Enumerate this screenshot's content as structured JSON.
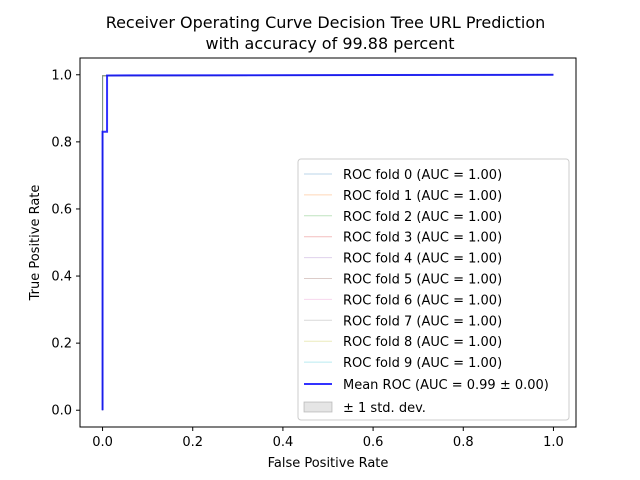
{
  "chart_data": {
    "type": "line",
    "title_lines": [
      "Receiver Operating Curve Decision Tree URL Prediction",
      "with accuracy of 99.88 percent"
    ],
    "xlabel": "False Positive Rate",
    "ylabel": "True Positive Rate",
    "xlim": [
      -0.05,
      1.05
    ],
    "ylim": [
      -0.05,
      1.05
    ],
    "xticks": [
      0.0,
      0.2,
      0.4,
      0.6,
      0.8,
      1.0
    ],
    "yticks": [
      0.0,
      0.2,
      0.4,
      0.6,
      0.8,
      1.0
    ],
    "xtick_labels": [
      "0.0",
      "0.2",
      "0.4",
      "0.6",
      "0.8",
      "1.0"
    ],
    "ytick_labels": [
      "0.0",
      "0.2",
      "0.4",
      "0.6",
      "0.8",
      "1.0"
    ],
    "grid": false,
    "legend_position": "lower-right",
    "series": [
      {
        "name": "ROC fold 0 (AUC = 1.00)",
        "color": "#1f77b4",
        "x": [
          0,
          0,
          1
        ],
        "y": [
          0,
          0.997,
          1
        ]
      },
      {
        "name": "ROC fold 1 (AUC = 1.00)",
        "color": "#ff7f0e",
        "x": [
          0,
          0,
          1
        ],
        "y": [
          0,
          0.997,
          1
        ]
      },
      {
        "name": "ROC fold 2 (AUC = 1.00)",
        "color": "#2ca02c",
        "x": [
          0,
          0,
          1
        ],
        "y": [
          0,
          0.997,
          1
        ]
      },
      {
        "name": "ROC fold 3 (AUC = 1.00)",
        "color": "#d62728",
        "x": [
          0,
          0,
          1
        ],
        "y": [
          0,
          0.997,
          1
        ]
      },
      {
        "name": "ROC fold 4 (AUC = 1.00)",
        "color": "#9467bd",
        "x": [
          0,
          0,
          1
        ],
        "y": [
          0,
          0.997,
          1
        ]
      },
      {
        "name": "ROC fold 5 (AUC = 1.00)",
        "color": "#8c564b",
        "x": [
          0,
          0,
          1
        ],
        "y": [
          0,
          0.997,
          1
        ]
      },
      {
        "name": "ROC fold 6 (AUC = 1.00)",
        "color": "#e377c2",
        "x": [
          0,
          0,
          1
        ],
        "y": [
          0,
          0.997,
          1
        ]
      },
      {
        "name": "ROC fold 7 (AUC = 1.00)",
        "color": "#7f7f7f",
        "x": [
          0,
          0,
          1
        ],
        "y": [
          0,
          0.997,
          1
        ]
      },
      {
        "name": "ROC fold 8 (AUC = 1.00)",
        "color": "#bcbd22",
        "x": [
          0,
          0,
          1
        ],
        "y": [
          0,
          0.997,
          1
        ]
      },
      {
        "name": "ROC fold 9 (AUC = 1.00)",
        "color": "#17becf",
        "x": [
          0,
          0,
          1
        ],
        "y": [
          0,
          0.997,
          1
        ]
      }
    ],
    "mean": {
      "name": "Mean ROC (AUC = 0.99 ± 0.00)",
      "color": "#0000ff",
      "x": [
        0,
        0,
        0.01,
        0.01,
        1
      ],
      "y": [
        0,
        0.83,
        0.83,
        0.998,
        1
      ]
    },
    "std_band": {
      "name": "± 1 std. dev.",
      "color": "#bfbfbf"
    }
  }
}
